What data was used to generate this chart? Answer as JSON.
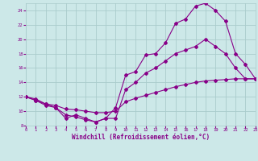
{
  "xlabel": "Windchill (Refroidissement éolien,°C)",
  "xlim": [
    0,
    23
  ],
  "ylim": [
    8,
    25
  ],
  "xticks": [
    0,
    1,
    2,
    3,
    4,
    5,
    6,
    7,
    8,
    9,
    10,
    11,
    12,
    13,
    14,
    15,
    16,
    17,
    18,
    19,
    20,
    21,
    22,
    23
  ],
  "yticks": [
    8,
    10,
    12,
    14,
    16,
    18,
    20,
    22,
    24
  ],
  "bg_color": "#cce8e8",
  "grid_color": "#aacccc",
  "line_color": "#880088",
  "curve1_x": [
    0,
    1,
    2,
    3,
    4,
    5,
    6,
    7,
    8,
    9,
    10,
    11,
    12,
    13,
    14,
    15,
    16,
    17,
    18,
    19,
    20,
    21,
    22,
    23
  ],
  "curve1_y": [
    12,
    11.7,
    11.0,
    10.5,
    9.0,
    9.5,
    9.0,
    8.5,
    9.0,
    10.5,
    15.0,
    15.5,
    17.8,
    18.0,
    19.5,
    22.2,
    22.8,
    24.6,
    25.0,
    24.0,
    22.5,
    18.0,
    16.5,
    14.5
  ],
  "curve2_x": [
    0,
    1,
    2,
    3,
    4,
    5,
    6,
    7,
    8,
    9,
    10,
    11,
    12,
    13,
    14,
    15,
    16,
    17,
    18,
    19,
    20,
    21,
    22,
    23
  ],
  "curve2_y": [
    12,
    11.5,
    10.8,
    10.5,
    9.5,
    9.2,
    8.8,
    8.5,
    9.0,
    9.0,
    13.0,
    14.0,
    15.3,
    16.0,
    17.0,
    18.0,
    18.5,
    19.0,
    20.0,
    19.0,
    18.0,
    16.0,
    14.5,
    14.5
  ],
  "curve3_x": [
    0,
    1,
    2,
    3,
    4,
    5,
    6,
    7,
    8,
    9,
    10,
    11,
    12,
    13,
    14,
    15,
    16,
    17,
    18,
    19,
    20,
    21,
    22,
    23
  ],
  "curve3_y": [
    12,
    11.5,
    11.0,
    10.8,
    10.3,
    10.2,
    10.0,
    9.8,
    9.8,
    10.0,
    11.3,
    11.8,
    12.2,
    12.6,
    13.0,
    13.4,
    13.7,
    14.0,
    14.2,
    14.3,
    14.4,
    14.5,
    14.5,
    14.5
  ]
}
